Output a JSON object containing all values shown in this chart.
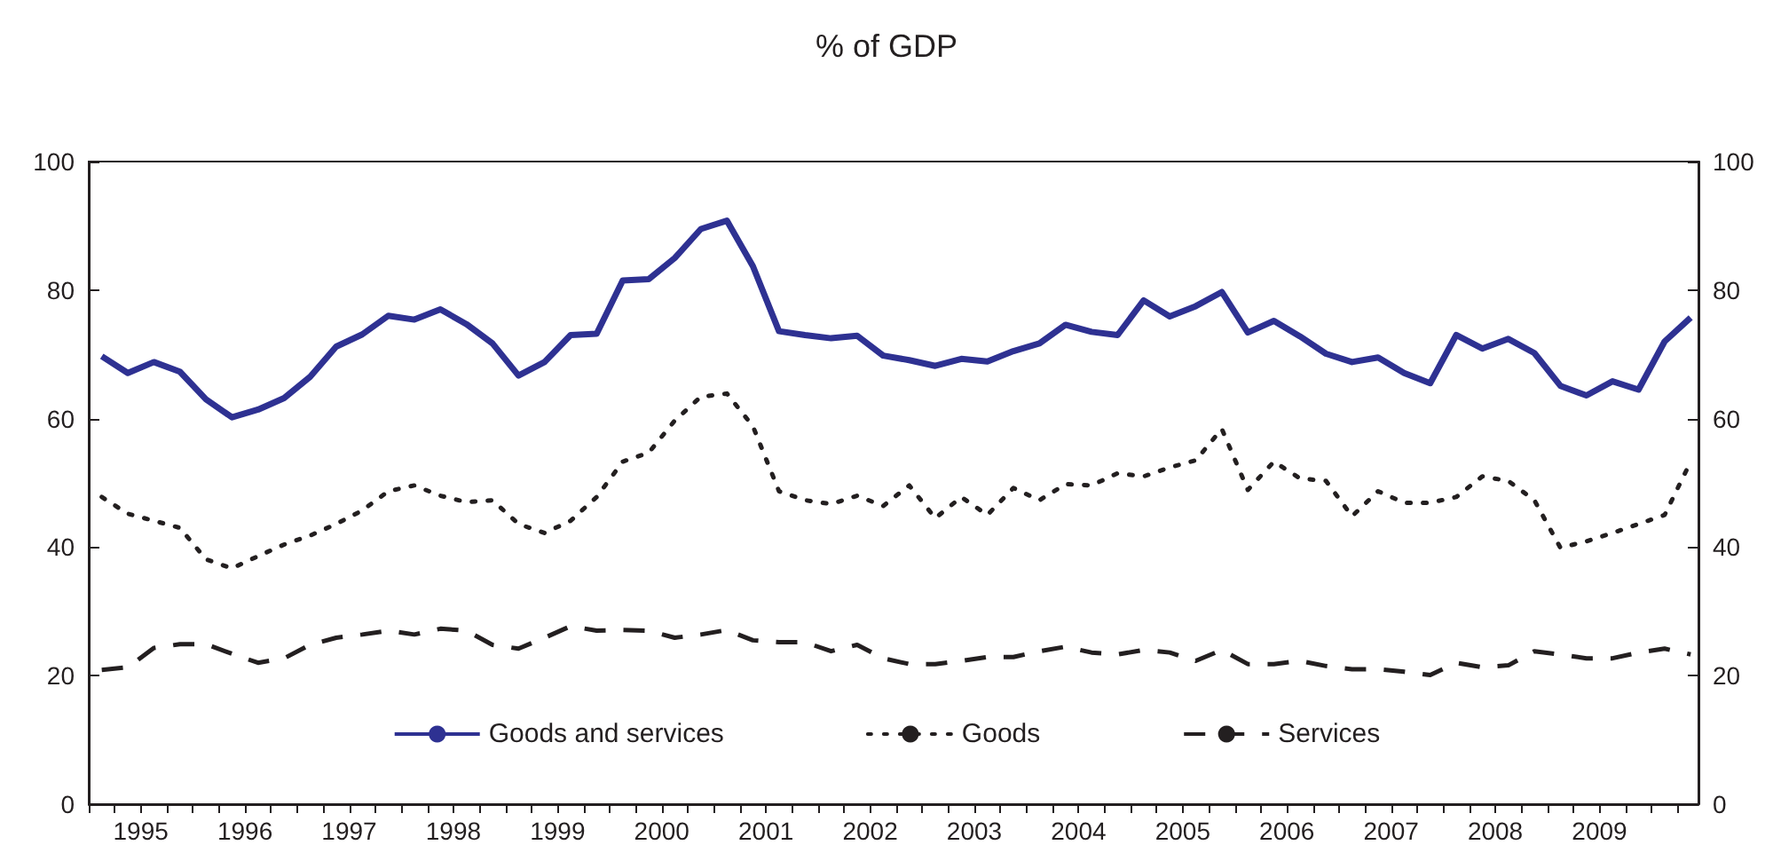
{
  "chart_data": {
    "type": "line",
    "title": "% of GDP",
    "x": [
      1995.125,
      1995.375,
      1995.625,
      1995.875,
      1996.125,
      1996.375,
      1996.625,
      1996.875,
      1997.125,
      1997.375,
      1997.625,
      1997.875,
      1998.125,
      1998.375,
      1998.625,
      1998.875,
      1999.125,
      1999.375,
      1999.625,
      1999.875,
      2000.125,
      2000.375,
      2000.625,
      2000.875,
      2001.125,
      2001.375,
      2001.625,
      2001.875,
      2002.125,
      2002.375,
      2002.625,
      2002.875,
      2003.125,
      2003.375,
      2003.625,
      2003.875,
      2004.125,
      2004.375,
      2004.625,
      2004.875,
      2005.125,
      2005.375,
      2005.625,
      2005.875,
      2006.125,
      2006.375,
      2006.625,
      2006.875,
      2007.125,
      2007.375,
      2007.625,
      2007.875,
      2008.125,
      2008.375,
      2008.625,
      2008.875,
      2009.125,
      2009.375,
      2009.625,
      2009.875,
      2010.125,
      2010.375
    ],
    "series": [
      {
        "name": "Goods and services",
        "color": "#2e3192",
        "line_style": "solid",
        "values": [
          69.7,
          67.1,
          68.8,
          67.3,
          63,
          60.2,
          61.4,
          63.2,
          66.5,
          71.2,
          73.1,
          76,
          75.4,
          77,
          74.7,
          71.7,
          66.7,
          68.8,
          73,
          73.2,
          81.5,
          81.7,
          85,
          89.5,
          90.8,
          83.7,
          73.6,
          73,
          72.5,
          72.9,
          69.8,
          69.1,
          68.2,
          69.3,
          68.9,
          70.5,
          71.7,
          74.6,
          73.5,
          73,
          78.4,
          75.9,
          77.5,
          79.7,
          73.4,
          75.2,
          72.8,
          70.1,
          68.8,
          69.5,
          67.1,
          65.5,
          73,
          70.9,
          72.4,
          70.2,
          65.1,
          63.6,
          65.8,
          64.5,
          72,
          75.7
        ]
      },
      {
        "name": "Goods",
        "color": "#231f20",
        "line_style": "dotted",
        "values": [
          47.8,
          45.2,
          44.1,
          43,
          38.1,
          36.7,
          38.6,
          40.4,
          41.8,
          43.6,
          45.7,
          48.7,
          49.6,
          48,
          47,
          47.3,
          43.6,
          42.2,
          44.1,
          47.8,
          53.3,
          54.7,
          59.7,
          63.4,
          63.9,
          58.8,
          48.7,
          47.3,
          46.7,
          48,
          46.4,
          49.6,
          44.5,
          47.8,
          45,
          49.2,
          47.3,
          49.8,
          49.6,
          51.5,
          51,
          52.4,
          53.5,
          58.4,
          48.9,
          53.3,
          50.7,
          50.3,
          44.8,
          48.7,
          46.9,
          46.9,
          47.8,
          51,
          50.3,
          47.3,
          39.9,
          40.9,
          42.2,
          43.6,
          45,
          53.3
        ]
      },
      {
        "name": "Services",
        "color": "#231f20",
        "line_style": "dashed",
        "values": [
          20.9,
          21.3,
          24.3,
          24.9,
          24.9,
          23.4,
          22,
          22.7,
          24.8,
          25.9,
          26.4,
          27,
          26.4,
          27.3,
          27,
          24.8,
          24.2,
          25.9,
          27.7,
          27,
          27.1,
          27,
          25.9,
          26.4,
          27.1,
          25.5,
          25.2,
          25.2,
          23.8,
          24.8,
          22.7,
          21.8,
          21.8,
          22.3,
          22.9,
          22.9,
          23.8,
          24.5,
          23.6,
          23.3,
          24,
          23.6,
          22.3,
          24,
          21.8,
          21.8,
          22.3,
          21.5,
          21,
          21,
          20.6,
          20.1,
          22,
          21.3,
          21.6,
          23.8,
          23.3,
          22.7,
          22.7,
          23.6,
          24.2,
          23.3
        ]
      }
    ],
    "xlim": [
      1995,
      2010.45
    ],
    "xticks": [
      {
        "value": 1995,
        "label": null
      },
      {
        "value": 1995.25,
        "label": null
      },
      {
        "value": 1995.5,
        "label": "1995"
      },
      {
        "value": 1995.75,
        "label": null
      },
      {
        "value": 1996,
        "label": null
      },
      {
        "value": 1996.25,
        "label": null
      },
      {
        "value": 1996.5,
        "label": "1996"
      },
      {
        "value": 1996.75,
        "label": null
      },
      {
        "value": 1997,
        "label": null
      },
      {
        "value": 1997.25,
        "label": null
      },
      {
        "value": 1997.5,
        "label": "1997"
      },
      {
        "value": 1997.75,
        "label": null
      },
      {
        "value": 1998,
        "label": null
      },
      {
        "value": 1998.25,
        "label": null
      },
      {
        "value": 1998.5,
        "label": "1998"
      },
      {
        "value": 1998.75,
        "label": null
      },
      {
        "value": 1999,
        "label": null
      },
      {
        "value": 1999.25,
        "label": null
      },
      {
        "value": 1999.5,
        "label": "1999"
      },
      {
        "value": 1999.75,
        "label": null
      },
      {
        "value": 2000,
        "label": null
      },
      {
        "value": 2000.25,
        "label": null
      },
      {
        "value": 2000.5,
        "label": "2000"
      },
      {
        "value": 2000.75,
        "label": null
      },
      {
        "value": 2001,
        "label": null
      },
      {
        "value": 2001.25,
        "label": null
      },
      {
        "value": 2001.5,
        "label": "2001"
      },
      {
        "value": 2001.75,
        "label": null
      },
      {
        "value": 2002,
        "label": null
      },
      {
        "value": 2002.25,
        "label": null
      },
      {
        "value": 2002.5,
        "label": "2002"
      },
      {
        "value": 2002.75,
        "label": null
      },
      {
        "value": 2003,
        "label": null
      },
      {
        "value": 2003.25,
        "label": null
      },
      {
        "value": 2003.5,
        "label": "2003"
      },
      {
        "value": 2003.75,
        "label": null
      },
      {
        "value": 2004,
        "label": null
      },
      {
        "value": 2004.25,
        "label": null
      },
      {
        "value": 2004.5,
        "label": "2004"
      },
      {
        "value": 2004.75,
        "label": null
      },
      {
        "value": 2005,
        "label": null
      },
      {
        "value": 2005.25,
        "label": null
      },
      {
        "value": 2005.5,
        "label": "2005"
      },
      {
        "value": 2005.75,
        "label": null
      },
      {
        "value": 2006,
        "label": null
      },
      {
        "value": 2006.25,
        "label": null
      },
      {
        "value": 2006.5,
        "label": "2006"
      },
      {
        "value": 2006.75,
        "label": null
      },
      {
        "value": 2007,
        "label": null
      },
      {
        "value": 2007.25,
        "label": null
      },
      {
        "value": 2007.5,
        "label": "2007"
      },
      {
        "value": 2007.75,
        "label": null
      },
      {
        "value": 2008,
        "label": null
      },
      {
        "value": 2008.25,
        "label": null
      },
      {
        "value": 2008.5,
        "label": "2008"
      },
      {
        "value": 2008.75,
        "label": null
      },
      {
        "value": 2009,
        "label": null
      },
      {
        "value": 2009.25,
        "label": null
      },
      {
        "value": 2009.5,
        "label": "2009"
      },
      {
        "value": 2009.75,
        "label": null
      },
      {
        "value": 2010,
        "label": null
      },
      {
        "value": 2010.25,
        "label": null
      }
    ],
    "ylim": [
      0,
      100
    ],
    "yticks": [
      0,
      20,
      40,
      60,
      80,
      100
    ],
    "y2lim": [
      0,
      100
    ],
    "y2ticks": [
      0,
      20,
      40,
      60,
      80,
      100
    ],
    "grid": false,
    "legend": "bottom",
    "marker": "none"
  }
}
